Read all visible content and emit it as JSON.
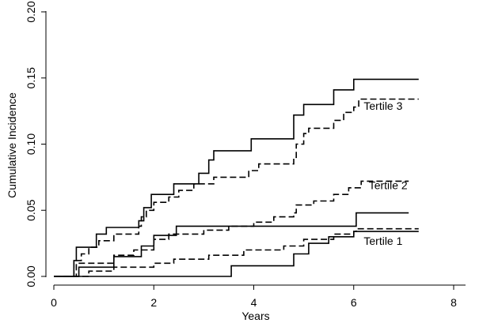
{
  "chart_data": {
    "type": "line",
    "step": true,
    "xlabel": "Years",
    "ylabel": "Cumulative Incidence",
    "xlim": [
      0,
      8
    ],
    "ylim": [
      0,
      0.2
    ],
    "xticks": [
      0,
      2,
      4,
      6,
      8
    ],
    "yticks": [
      0.0,
      0.05,
      0.1,
      0.15,
      0.2
    ],
    "ytick_labels": [
      "0.00",
      "0.05",
      "0.10",
      "0.15",
      "0.20"
    ],
    "grid": false,
    "annotations": [
      {
        "text": "Tertile 3",
        "x": 6.2,
        "y": 0.126
      },
      {
        "text": "Tertile 2",
        "x": 6.3,
        "y": 0.066
      },
      {
        "text": "Tertile 1",
        "x": 6.2,
        "y": 0.024
      }
    ],
    "series": [
      {
        "group": "Tertile 3",
        "style": "solid",
        "points": [
          [
            0,
            0
          ],
          [
            0.4,
            0
          ],
          [
            0.4,
            0.012
          ],
          [
            0.45,
            0.022
          ],
          [
            0.85,
            0.032
          ],
          [
            1.05,
            0.037
          ],
          [
            1.7,
            0.042
          ],
          [
            1.8,
            0.052
          ],
          [
            1.95,
            0.062
          ],
          [
            2.4,
            0.07
          ],
          [
            2.9,
            0.078
          ],
          [
            3.1,
            0.088
          ],
          [
            3.2,
            0.095
          ],
          [
            3.95,
            0.104
          ],
          [
            4.8,
            0.122
          ],
          [
            5.0,
            0.13
          ],
          [
            5.6,
            0.141
          ],
          [
            6.0,
            0.149
          ],
          [
            7.3,
            0.149
          ]
        ]
      },
      {
        "group": "Tertile 3",
        "style": "dashed",
        "points": [
          [
            0,
            0
          ],
          [
            0.4,
            0
          ],
          [
            0.4,
            0.012
          ],
          [
            0.55,
            0.017
          ],
          [
            0.7,
            0.022
          ],
          [
            0.9,
            0.027
          ],
          [
            1.2,
            0.032
          ],
          [
            1.7,
            0.038
          ],
          [
            1.75,
            0.045
          ],
          [
            1.85,
            0.05
          ],
          [
            2.0,
            0.056
          ],
          [
            2.3,
            0.06
          ],
          [
            2.5,
            0.065
          ],
          [
            2.8,
            0.07
          ],
          [
            3.2,
            0.075
          ],
          [
            3.9,
            0.08
          ],
          [
            4.1,
            0.085
          ],
          [
            4.8,
            0.09
          ],
          [
            4.85,
            0.1
          ],
          [
            5.0,
            0.108
          ],
          [
            5.1,
            0.112
          ],
          [
            5.6,
            0.118
          ],
          [
            5.8,
            0.124
          ],
          [
            6.0,
            0.128
          ],
          [
            6.1,
            0.134
          ],
          [
            7.3,
            0.134
          ]
        ]
      },
      {
        "group": "Tertile 2",
        "style": "dashed",
        "points": [
          [
            0,
            0
          ],
          [
            0.45,
            0
          ],
          [
            0.45,
            0.01
          ],
          [
            1.2,
            0.016
          ],
          [
            1.6,
            0.02
          ],
          [
            2.0,
            0.028
          ],
          [
            2.3,
            0.032
          ],
          [
            3.0,
            0.035
          ],
          [
            3.5,
            0.038
          ],
          [
            4.0,
            0.041
          ],
          [
            4.4,
            0.045
          ],
          [
            4.8,
            0.048
          ],
          [
            4.85,
            0.054
          ],
          [
            5.2,
            0.057
          ],
          [
            5.6,
            0.062
          ],
          [
            5.9,
            0.067
          ],
          [
            6.15,
            0.072
          ],
          [
            7.1,
            0.072
          ]
        ]
      },
      {
        "group": "Tertile 1",
        "style": "solid",
        "points": [
          [
            0,
            0
          ],
          [
            0.5,
            0
          ],
          [
            0.5,
            0.007
          ],
          [
            1.2,
            0.015
          ],
          [
            1.75,
            0.023
          ],
          [
            2.0,
            0.031
          ],
          [
            2.45,
            0.038
          ],
          [
            6.0,
            0.038
          ],
          [
            6.05,
            0.048
          ],
          [
            7.1,
            0.048
          ]
        ]
      },
      {
        "group": "Tertile 1",
        "style": "dashed",
        "points": [
          [
            0,
            0
          ],
          [
            0.7,
            0
          ],
          [
            0.7,
            0.004
          ],
          [
            1.2,
            0.007
          ],
          [
            2.0,
            0.01
          ],
          [
            2.4,
            0.013
          ],
          [
            3.1,
            0.016
          ],
          [
            3.8,
            0.02
          ],
          [
            4.6,
            0.023
          ],
          [
            5.0,
            0.028
          ],
          [
            5.6,
            0.032
          ],
          [
            6.0,
            0.034
          ],
          [
            6.05,
            0.036
          ],
          [
            7.3,
            0.036
          ]
        ]
      },
      {
        "group": "Tertile 1",
        "style": "solid",
        "points": [
          [
            0,
            0
          ],
          [
            3.55,
            0
          ],
          [
            3.55,
            0.008
          ],
          [
            4.8,
            0.017
          ],
          [
            5.1,
            0.025
          ],
          [
            5.5,
            0.03
          ],
          [
            6.0,
            0.034
          ],
          [
            7.3,
            0.034
          ]
        ]
      }
    ]
  }
}
